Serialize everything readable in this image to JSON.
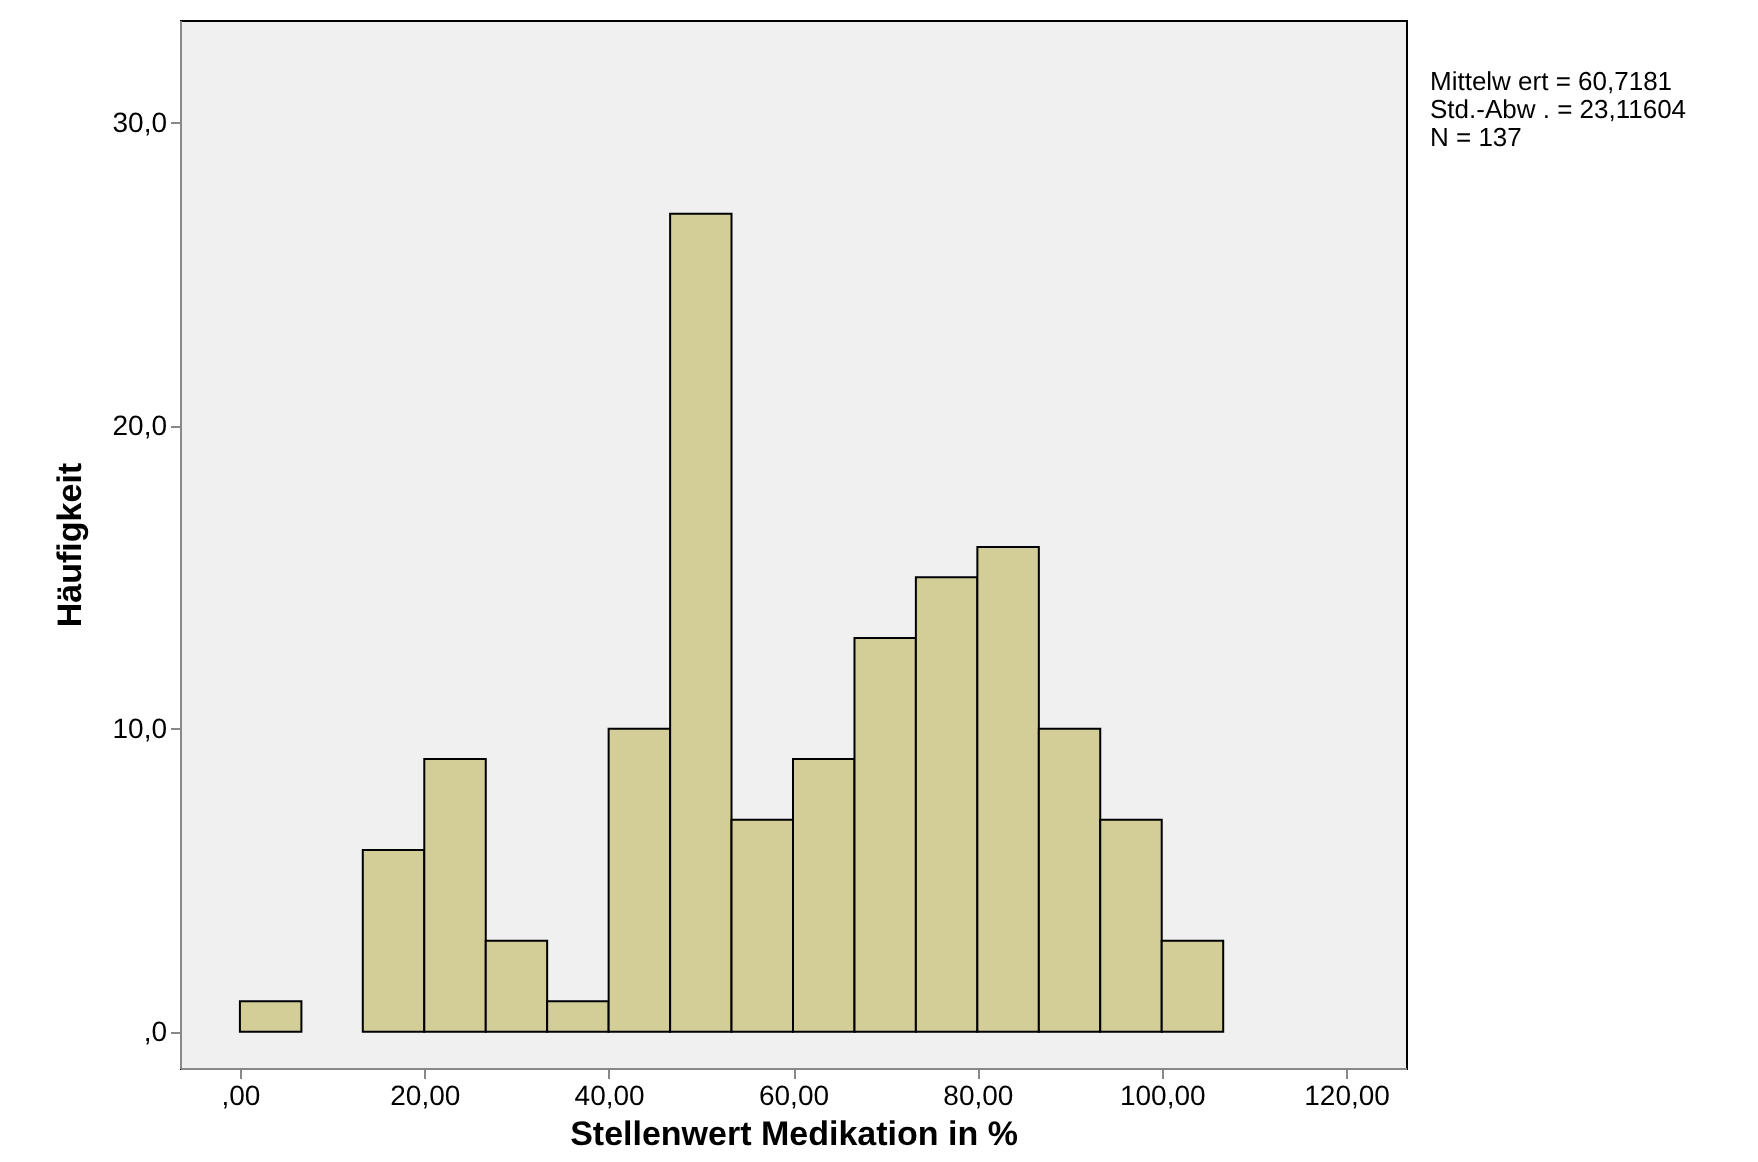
{
  "chart_data": {
    "type": "histogram",
    "xlabel": "Stellenwert Medikation in %",
    "ylabel": "Häufigkeit",
    "bins": [
      0,
      6.67,
      13.33,
      20,
      26.67,
      33.33,
      40,
      46.67,
      53.33,
      60,
      66.67,
      73.33,
      80,
      86.67,
      93.33,
      100,
      106.67
    ],
    "values": [
      1,
      0,
      6,
      9,
      3,
      1,
      10,
      27,
      7,
      9,
      13,
      15,
      16,
      10,
      7,
      3
    ],
    "color": "#d3ce98",
    "xlim": [
      -6.5,
      126.5
    ],
    "xticks": [
      {
        "value": 0,
        "label": ",00"
      },
      {
        "value": 20,
        "label": "20,00"
      },
      {
        "value": 40,
        "label": "40,00"
      },
      {
        "value": 60,
        "label": "60,00"
      },
      {
        "value": 80,
        "label": "80,00"
      },
      {
        "value": 100,
        "label": "100,00"
      },
      {
        "value": 120,
        "label": "120,00"
      }
    ],
    "ylim": [
      -1.2,
      33.4
    ],
    "yticks": [
      {
        "value": 0,
        "label": ",0"
      },
      {
        "value": 10,
        "label": "10,0"
      },
      {
        "value": 20,
        "label": "20,0"
      },
      {
        "value": 30,
        "label": "30,0"
      }
    ],
    "grid": false,
    "annotations": [
      "Mittelw ert = 60,7181",
      "Std.-Abw . = 23,11604",
      "N = 137"
    ]
  }
}
